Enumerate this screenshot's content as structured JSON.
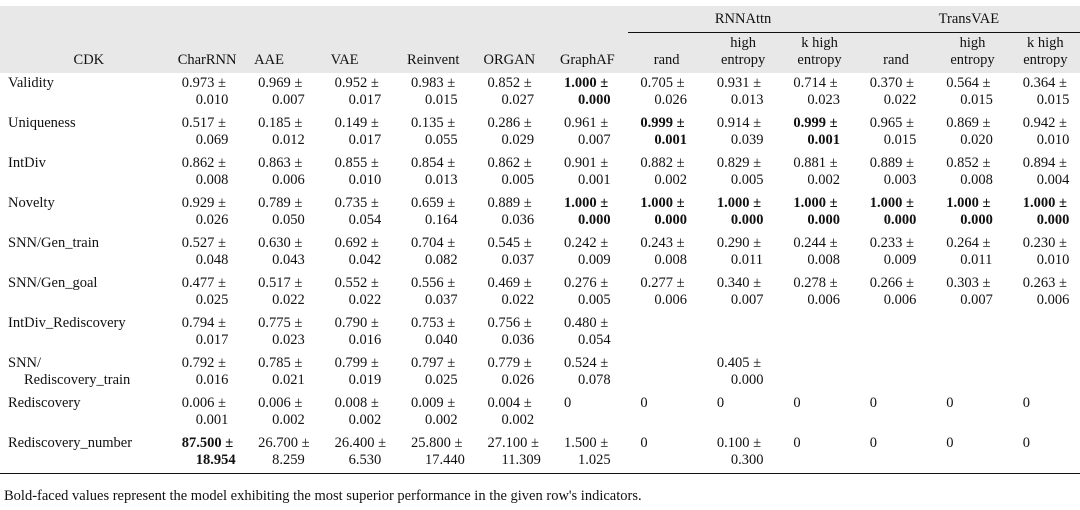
{
  "header": {
    "corner": "CDK",
    "models": [
      "CharRNN",
      "AAE",
      "VAE",
      "Reinvent",
      "ORGAN",
      "GraphAF"
    ],
    "groups": [
      {
        "name": "RNNAttn",
        "sub": [
          [
            "rand"
          ],
          [
            "high",
            "entropy"
          ],
          [
            "k high",
            "entropy"
          ]
        ]
      },
      {
        "name": "TransVAE",
        "sub": [
          [
            "rand"
          ],
          [
            "high",
            "entropy"
          ],
          [
            "k high",
            "entropy"
          ]
        ]
      }
    ]
  },
  "rows": [
    {
      "metric": [
        "Validity"
      ],
      "cells": [
        {
          "a": "0.973 ±",
          "b": "0.010"
        },
        {
          "a": "0.969 ±",
          "b": "0.007"
        },
        {
          "a": "0.952 ±",
          "b": "0.017"
        },
        {
          "a": "0.983 ±",
          "b": "0.015"
        },
        {
          "a": "0.852 ±",
          "b": "0.027"
        },
        {
          "a": "1.000 ±",
          "b": "0.000",
          "bold": true
        },
        {
          "a": "0.705 ±",
          "b": "0.026"
        },
        {
          "a": "0.931 ±",
          "b": "0.013"
        },
        {
          "a": "0.714 ±",
          "b": "0.023"
        },
        {
          "a": "0.370 ±",
          "b": "0.022"
        },
        {
          "a": "0.564 ±",
          "b": "0.015"
        },
        {
          "a": "0.364 ±",
          "b": "0.015"
        }
      ]
    },
    {
      "metric": [
        "Uniqueness"
      ],
      "cells": [
        {
          "a": "0.517 ±",
          "b": "0.069"
        },
        {
          "a": "0.185 ±",
          "b": "0.012"
        },
        {
          "a": "0.149 ±",
          "b": "0.017"
        },
        {
          "a": "0.135 ±",
          "b": "0.055"
        },
        {
          "a": "0.286 ±",
          "b": "0.029"
        },
        {
          "a": "0.961 ±",
          "b": "0.007"
        },
        {
          "a": "0.999 ±",
          "b": "0.001",
          "bold": true
        },
        {
          "a": "0.914 ±",
          "b": "0.039"
        },
        {
          "a": "0.999 ±",
          "b": "0.001",
          "bold": true
        },
        {
          "a": "0.965 ±",
          "b": "0.015"
        },
        {
          "a": "0.869 ±",
          "b": "0.020"
        },
        {
          "a": "0.942 ±",
          "b": "0.010"
        }
      ]
    },
    {
      "metric": [
        "IntDiv"
      ],
      "cells": [
        {
          "a": "0.862 ±",
          "b": "0.008"
        },
        {
          "a": "0.863 ±",
          "b": "0.006"
        },
        {
          "a": "0.855 ±",
          "b": "0.010"
        },
        {
          "a": "0.854 ±",
          "b": "0.013"
        },
        {
          "a": "0.862 ±",
          "b": "0.005"
        },
        {
          "a": "0.901 ±",
          "b": "0.001"
        },
        {
          "a": "0.882 ±",
          "b": "0.002"
        },
        {
          "a": "0.829 ±",
          "b": "0.005"
        },
        {
          "a": "0.881 ±",
          "b": "0.002"
        },
        {
          "a": "0.889 ±",
          "b": "0.003"
        },
        {
          "a": "0.852 ±",
          "b": "0.008"
        },
        {
          "a": "0.894 ±",
          "b": "0.004"
        }
      ]
    },
    {
      "metric": [
        "Novelty"
      ],
      "cells": [
        {
          "a": "0.929 ±",
          "b": "0.026"
        },
        {
          "a": "0.789 ±",
          "b": "0.050"
        },
        {
          "a": "0.735 ±",
          "b": "0.054"
        },
        {
          "a": "0.659 ±",
          "b": "0.164"
        },
        {
          "a": "0.889 ±",
          "b": "0.036"
        },
        {
          "a": "1.000 ±",
          "b": "0.000",
          "bold": true
        },
        {
          "a": "1.000 ±",
          "b": "0.000",
          "bold": true
        },
        {
          "a": "1.000 ±",
          "b": "0.000",
          "bold": true
        },
        {
          "a": "1.000 ±",
          "b": "0.000",
          "bold": true
        },
        {
          "a": "1.000 ±",
          "b": "0.000",
          "bold": true
        },
        {
          "a": "1.000 ±",
          "b": "0.000",
          "bold": true
        },
        {
          "a": "1.000 ±",
          "b": "0.000",
          "bold": true
        }
      ]
    },
    {
      "metric": [
        "SNN/Gen_train"
      ],
      "cells": [
        {
          "a": "0.527 ±",
          "b": "0.048"
        },
        {
          "a": "0.630 ±",
          "b": "0.043"
        },
        {
          "a": "0.692 ±",
          "b": "0.042"
        },
        {
          "a": "0.704 ±",
          "b": "0.082"
        },
        {
          "a": "0.545 ±",
          "b": "0.037"
        },
        {
          "a": "0.242 ±",
          "b": "0.009"
        },
        {
          "a": "0.243 ±",
          "b": "0.008"
        },
        {
          "a": "0.290 ±",
          "b": "0.011"
        },
        {
          "a": "0.244 ±",
          "b": "0.008"
        },
        {
          "a": "0.233 ±",
          "b": "0.009"
        },
        {
          "a": "0.264 ±",
          "b": "0.011"
        },
        {
          "a": "0.230 ±",
          "b": "0.010"
        }
      ]
    },
    {
      "metric": [
        "SNN/Gen_goal"
      ],
      "cells": [
        {
          "a": "0.477 ±",
          "b": "0.025"
        },
        {
          "a": "0.517 ±",
          "b": "0.022"
        },
        {
          "a": "0.552 ±",
          "b": "0.022"
        },
        {
          "a": "0.556 ±",
          "b": "0.037"
        },
        {
          "a": "0.469 ±",
          "b": "0.022"
        },
        {
          "a": "0.276 ±",
          "b": "0.005"
        },
        {
          "a": "0.277 ±",
          "b": "0.006"
        },
        {
          "a": "0.340 ±",
          "b": "0.007"
        },
        {
          "a": "0.278 ±",
          "b": "0.006"
        },
        {
          "a": "0.266 ±",
          "b": "0.006"
        },
        {
          "a": "0.303 ±",
          "b": "0.007"
        },
        {
          "a": "0.263 ±",
          "b": "0.006"
        }
      ]
    },
    {
      "metric": [
        "IntDiv_Rediscovery"
      ],
      "cells": [
        {
          "a": "0.794 ±",
          "b": "0.017"
        },
        {
          "a": "0.775 ±",
          "b": "0.023"
        },
        {
          "a": "0.790 ±",
          "b": "0.016"
        },
        {
          "a": "0.753 ±",
          "b": "0.040"
        },
        {
          "a": "0.756 ±",
          "b": "0.036"
        },
        {
          "a": "0.480 ±",
          "b": "0.054"
        },
        {
          "a": "",
          "b": ""
        },
        {
          "a": "",
          "b": ""
        },
        {
          "a": "",
          "b": ""
        },
        {
          "a": "",
          "b": ""
        },
        {
          "a": "",
          "b": ""
        },
        {
          "a": "",
          "b": ""
        }
      ]
    },
    {
      "metric": [
        "SNN/",
        "Rediscovery_train"
      ],
      "cells": [
        {
          "a": "0.792 ±",
          "b": "0.016"
        },
        {
          "a": "0.785 ±",
          "b": "0.021"
        },
        {
          "a": "0.799 ±",
          "b": "0.019"
        },
        {
          "a": "0.797 ±",
          "b": "0.025"
        },
        {
          "a": "0.779 ±",
          "b": "0.026"
        },
        {
          "a": "0.524 ±",
          "b": "0.078"
        },
        {
          "a": "",
          "b": ""
        },
        {
          "a": "0.405 ±",
          "b": "0.000"
        },
        {
          "a": "",
          "b": ""
        },
        {
          "a": "",
          "b": ""
        },
        {
          "a": "",
          "b": ""
        },
        {
          "a": "",
          "b": ""
        }
      ]
    },
    {
      "metric": [
        "Rediscovery"
      ],
      "cells": [
        {
          "a": "0.006 ±",
          "b": "0.001"
        },
        {
          "a": "0.006 ±",
          "b": "0.002"
        },
        {
          "a": "0.008 ±",
          "b": "0.002"
        },
        {
          "a": "0.009 ±",
          "b": "0.002"
        },
        {
          "a": "0.004 ±",
          "b": "0.002"
        },
        {
          "a": "0",
          "b": ""
        },
        {
          "a": "0",
          "b": ""
        },
        {
          "a": "0",
          "b": ""
        },
        {
          "a": "0",
          "b": ""
        },
        {
          "a": "0",
          "b": ""
        },
        {
          "a": "0",
          "b": ""
        },
        {
          "a": "0",
          "b": ""
        }
      ]
    },
    {
      "metric": [
        "Rediscovery_number"
      ],
      "cells": [
        {
          "a": "87.500 ±",
          "b": "18.954",
          "bold": true
        },
        {
          "a": "26.700 ±",
          "b": "8.259"
        },
        {
          "a": "26.400 ±",
          "b": "6.530"
        },
        {
          "a": "25.800 ±",
          "b": "17.440"
        },
        {
          "a": "27.100 ±",
          "b": "11.309"
        },
        {
          "a": "1.500 ±",
          "b": "1.025"
        },
        {
          "a": "0",
          "b": ""
        },
        {
          "a": "0.100 ±",
          "b": "0.300"
        },
        {
          "a": "0",
          "b": ""
        },
        {
          "a": "0",
          "b": ""
        },
        {
          "a": "0",
          "b": ""
        },
        {
          "a": "0",
          "b": ""
        }
      ]
    }
  ],
  "footnote": "Bold-faced values represent the model exhibiting the most superior performance in the given row's indicators."
}
